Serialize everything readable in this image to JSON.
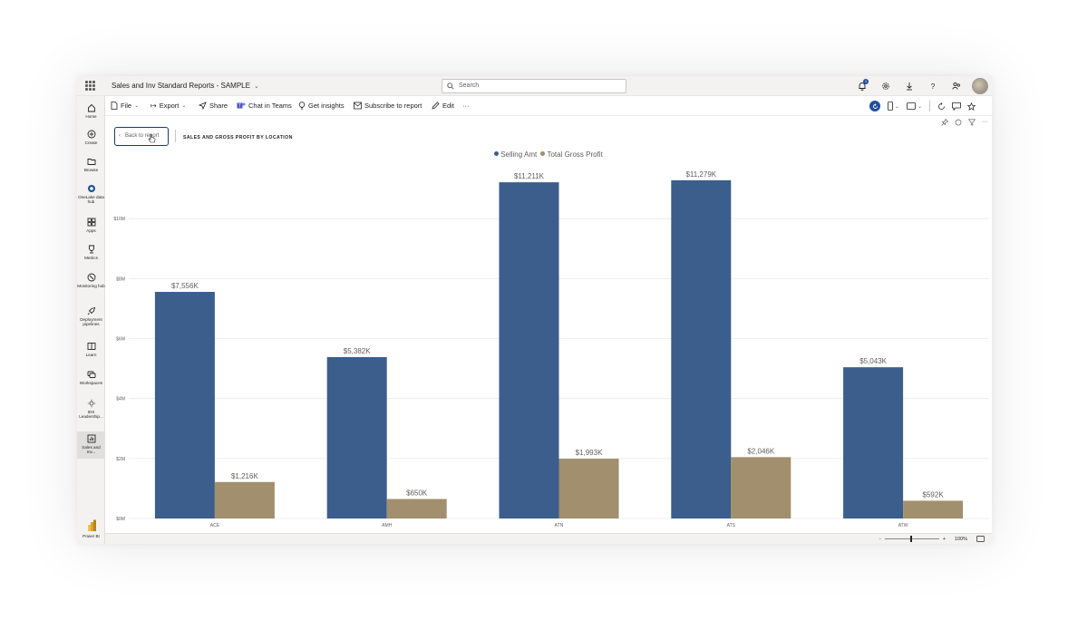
{
  "app": {
    "title": "Sales and Inv Standard Reports - SAMPLE",
    "title_chevron": "⌄",
    "search_placeholder": "Search",
    "notification_count": "1"
  },
  "left_nav": {
    "items": [
      {
        "label": "Home",
        "icon": "home-icon"
      },
      {
        "label": "Create",
        "icon": "create-icon"
      },
      {
        "label": "Browse",
        "icon": "folder-icon"
      },
      {
        "label": "OneLake data hub",
        "icon": "onelake-icon"
      },
      {
        "label": "Apps",
        "icon": "apps-icon"
      },
      {
        "label": "Metrics",
        "icon": "trophy-icon"
      },
      {
        "label": "Monitoring hub",
        "icon": "monitoring-icon"
      },
      {
        "label": "Deployment pipelines",
        "icon": "rocket-icon"
      },
      {
        "label": "Learn",
        "icon": "book-icon"
      },
      {
        "label": "Workspaces",
        "icon": "workspaces-icon"
      },
      {
        "label": "IDS Leadership...",
        "icon": "gem-icon"
      },
      {
        "label": "Sales and Inv...",
        "icon": "report-icon"
      }
    ],
    "footer_label": "Power BI"
  },
  "toolbar": {
    "file": "File",
    "export": "Export",
    "share": "Share",
    "chat_in_teams": "Chat in Teams",
    "get_insights": "Get insights",
    "subscribe": "Subscribe to report",
    "edit": "Edit",
    "more": "···"
  },
  "visual": {
    "back_label": "Back to report",
    "title": "SALES AND GROSS PROFIT BY LOCATION"
  },
  "chart_data": {
    "type": "bar",
    "title": "SALES AND GROSS PROFIT BY LOCATION",
    "categories": [
      "ACE",
      "AMH",
      "ATN",
      "ATS",
      "ATW"
    ],
    "series": [
      {
        "name": "Selling Amt",
        "color": "#3b5e8c",
        "values": [
          7556,
          5382,
          11211,
          11279,
          5043
        ],
        "labels": [
          "$7,556K",
          "$5,382K",
          "$11,211K",
          "$11,279K",
          "$5,043K"
        ]
      },
      {
        "name": "Total Gross Profit",
        "color": "#a18f6e",
        "values": [
          1216,
          650,
          1993,
          2046,
          592
        ],
        "labels": [
          "$1,216K",
          "$650K",
          "$1,993K",
          "$2,046K",
          "$592K"
        ]
      }
    ],
    "y_ticks": [
      {
        "value": 0,
        "label": "$0M"
      },
      {
        "value": 2000,
        "label": "$2M"
      },
      {
        "value": 4000,
        "label": "$4M"
      },
      {
        "value": 6000,
        "label": "$6M"
      },
      {
        "value": 8000,
        "label": "$8M"
      },
      {
        "value": 10000,
        "label": "$10M"
      }
    ],
    "ylim": [
      0,
      12000
    ],
    "grid": true,
    "legend": "top-center"
  },
  "status": {
    "zoom_minus": "-",
    "zoom_plus": "+",
    "zoom_level": "100%"
  }
}
